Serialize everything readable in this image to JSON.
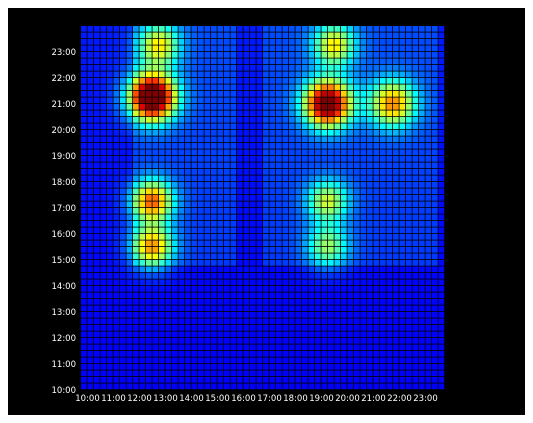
{
  "chart_data": {
    "type": "heatmap",
    "title": "",
    "xlabel": "",
    "ylabel": "",
    "x_ticks": [
      "10:00",
      "11:00",
      "12:00",
      "13:00",
      "14:00",
      "15:00",
      "16:00",
      "17:00",
      "18:00",
      "19:00",
      "20:00",
      "21:00",
      "22:00",
      "23:00"
    ],
    "y_ticks": [
      "10:00",
      "11:00",
      "12:00",
      "13:00",
      "14:00",
      "15:00",
      "16:00",
      "17:00",
      "18:00",
      "19:00",
      "20:00",
      "21:00",
      "22:00",
      "23:00"
    ],
    "x_range": [
      "10:00",
      "24:00"
    ],
    "y_range": [
      "10:00",
      "24:00"
    ],
    "cell_minutes": 15,
    "colormap": [
      "#00007f",
      "#0000ff",
      "#007fff",
      "#00ffff",
      "#7fff7f",
      "#ffff00",
      "#ff7f00",
      "#ff0000",
      "#7f0000"
    ],
    "value_range": [
      0,
      1
    ],
    "hotspots": [
      {
        "x": "12:45",
        "y": "21:15",
        "peak": 1.0,
        "spread_hours": 0.9
      },
      {
        "x": "19:30",
        "y": "21:00",
        "peak": 0.9,
        "spread_hours": 0.9
      },
      {
        "x": "22:00",
        "y": "21:00",
        "peak": 0.55,
        "spread_hours": 0.9
      },
      {
        "x": "12:45",
        "y": "17:15",
        "peak": 0.6,
        "spread_hours": 0.8
      },
      {
        "x": "12:45",
        "y": "15:30",
        "peak": 0.55,
        "spread_hours": 0.8
      },
      {
        "x": "19:30",
        "y": "17:15",
        "peak": 0.4,
        "spread_hours": 0.8
      },
      {
        "x": "19:30",
        "y": "15:30",
        "peak": 0.35,
        "spread_hours": 0.8
      },
      {
        "x": "13:00",
        "y": "23:15",
        "peak": 0.45,
        "spread_hours": 0.8
      },
      {
        "x": "19:45",
        "y": "23:15",
        "peak": 0.45,
        "spread_hours": 0.8
      }
    ],
    "grid": true,
    "legend": "none"
  }
}
